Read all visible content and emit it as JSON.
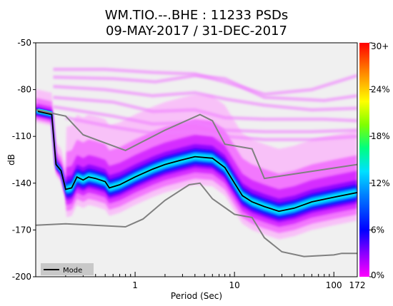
{
  "chart_data": {
    "type": "heatmap",
    "title_line1": "WM.TIO.--.BHE : 11233 PSDs",
    "title_line2": "09-MAY-2017 / 31-DEC-2017",
    "xlabel": "Period (Sec)",
    "ylabel": "dB",
    "x_scale": "log",
    "xlim": [
      0.1,
      172
    ],
    "ylim": [
      -200,
      -50
    ],
    "x_ticks": [
      {
        "value": 1,
        "label": "1"
      },
      {
        "value": 10,
        "label": "10"
      },
      {
        "value": 100,
        "label": "100"
      },
      {
        "value": 172,
        "label": "172"
      }
    ],
    "y_ticks": [
      {
        "value": -50,
        "label": "-50"
      },
      {
        "value": -80,
        "label": "-80"
      },
      {
        "value": -110,
        "label": "-110"
      },
      {
        "value": -140,
        "label": "-140"
      },
      {
        "value": -170,
        "label": "-170"
      },
      {
        "value": -200,
        "label": "-200"
      }
    ],
    "colorbar_ticks": [
      {
        "value": 0,
        "label": "0%"
      },
      {
        "value": 6,
        "label": "6%"
      },
      {
        "value": 12,
        "label": "12%"
      },
      {
        "value": 18,
        "label": "18%"
      },
      {
        "value": 24,
        "label": "24%"
      },
      {
        "value": 30,
        "label": "30+"
      }
    ],
    "colorbar_colors": [
      "#ff00ff",
      "#8a00ff",
      "#0000ff",
      "#0080ff",
      "#00e0ff",
      "#00ff80",
      "#80ff00",
      "#ffff00",
      "#ff8000",
      "#ff0000"
    ],
    "legend_label": "Mode",
    "background_color": "#f0f0f0",
    "mode": {
      "color": "#000000",
      "points": [
        [
          0.105,
          -94
        ],
        [
          0.145,
          -96
        ],
        [
          0.16,
          -128
        ],
        [
          0.18,
          -132
        ],
        [
          0.2,
          -144
        ],
        [
          0.23,
          -143
        ],
        [
          0.26,
          -136
        ],
        [
          0.3,
          -138
        ],
        [
          0.34,
          -136
        ],
        [
          0.4,
          -137
        ],
        [
          0.5,
          -139
        ],
        [
          0.55,
          -143
        ],
        [
          0.7,
          -141
        ],
        [
          1.0,
          -136
        ],
        [
          1.5,
          -131
        ],
        [
          2.0,
          -128
        ],
        [
          3.0,
          -125
        ],
        [
          4.0,
          -123
        ],
        [
          6.0,
          -124
        ],
        [
          8.0,
          -130
        ],
        [
          10.0,
          -140
        ],
        [
          12.0,
          -148
        ],
        [
          15.0,
          -152
        ],
        [
          20.0,
          -155
        ],
        [
          28.0,
          -158
        ],
        [
          40.0,
          -156
        ],
        [
          60.0,
          -152
        ],
        [
          100.0,
          -149
        ],
        [
          172.0,
          -146
        ]
      ]
    },
    "noise_models": {
      "color": "#808080",
      "high": [
        [
          0.1,
          -93
        ],
        [
          0.2,
          -97
        ],
        [
          0.3,
          -109
        ],
        [
          0.8,
          -119
        ],
        [
          2.0,
          -106
        ],
        [
          4.5,
          -96
        ],
        [
          6.0,
          -100
        ],
        [
          8.0,
          -115
        ],
        [
          15.0,
          -118
        ],
        [
          20.0,
          -137
        ],
        [
          172.0,
          -128
        ]
      ],
      "low": [
        [
          0.1,
          -167
        ],
        [
          0.2,
          -166
        ],
        [
          0.8,
          -168
        ],
        [
          1.2,
          -163
        ],
        [
          2.0,
          -151
        ],
        [
          3.5,
          -141
        ],
        [
          4.5,
          -140
        ],
        [
          6.0,
          -150
        ],
        [
          10.0,
          -160
        ],
        [
          15.0,
          -162
        ],
        [
          20.0,
          -175
        ],
        [
          30.0,
          -184
        ],
        [
          50.0,
          -187
        ],
        [
          100.0,
          -186
        ],
        [
          120.0,
          -185
        ],
        [
          172.0,
          -185
        ]
      ]
    }
  }
}
